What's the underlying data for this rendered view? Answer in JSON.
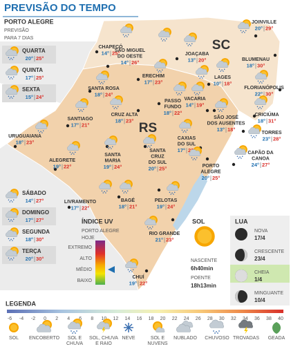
{
  "header": {
    "title": "PREVISÃO DO TEMPO"
  },
  "forecast": {
    "city": "PORTO ALEGRE",
    "subtitle_lines": [
      "PREVISÃO",
      "PARA 7 DIAS"
    ],
    "days": [
      {
        "day": "QUARTA",
        "min": "20°",
        "max": "25°"
      },
      {
        "day": "QUINTA",
        "min": "17°",
        "max": "25°"
      },
      {
        "day": "SEXTA",
        "min": "15°",
        "max": "24°"
      },
      {
        "day": "SÁBADO",
        "min": "14°",
        "max": "27°"
      },
      {
        "day": "DOMINGO",
        "min": "17°",
        "max": "27°"
      },
      {
        "day": "SEGUNDA",
        "min": "18°",
        "max": "30°"
      },
      {
        "day": "TERÇA",
        "min": "20°",
        "max": "30°"
      }
    ]
  },
  "map": {
    "states": [
      "SC",
      "RS"
    ],
    "cities": [
      {
        "name_lines": [
          "JOINVILLE"
        ],
        "min": "20°",
        "max": "29°"
      },
      {
        "name_lines": [
          "CHAPECÓ"
        ],
        "min": "14°",
        "max": "25°"
      },
      {
        "name_lines": [
          "SÃO MIGUEL",
          "DO OESTE"
        ],
        "min": "14°",
        "max": "26°"
      },
      {
        "name_lines": [
          "JOAÇABA"
        ],
        "min": "13°",
        "max": "20°"
      },
      {
        "name_lines": [
          "BLUMENAU"
        ],
        "min": "18°",
        "max": "30°"
      },
      {
        "name_lines": [
          "LAGES"
        ],
        "min": "10°",
        "max": "18°"
      },
      {
        "name_lines": [
          "FLORIANÓPOLIS"
        ],
        "min": "22°",
        "max": "30°"
      },
      {
        "name_lines": [
          "ERECHIM"
        ],
        "min": "17°",
        "max": "23°"
      },
      {
        "name_lines": [
          "SANTA ROSA"
        ],
        "min": "18°",
        "max": "24°"
      },
      {
        "name_lines": [
          "PASSO",
          "FUNDO"
        ],
        "min": "18°",
        "max": "22°"
      },
      {
        "name_lines": [
          "VACARIA"
        ],
        "min": "14°",
        "max": "19°"
      },
      {
        "name_lines": [
          "SANTIAGO"
        ],
        "min": "17°",
        "max": "21°"
      },
      {
        "name_lines": [
          "CRUZ ALTA"
        ],
        "min": "18°",
        "max": "23°"
      },
      {
        "name_lines": [
          "SÃO JOSÉ",
          "DOS AUSENTES"
        ],
        "min": "13°",
        "max": "18°"
      },
      {
        "name_lines": [
          "CRICIÚMA"
        ],
        "min": "18°",
        "max": "31°"
      },
      {
        "name_lines": [
          "TORRES"
        ],
        "min": "23°",
        "max": "28°"
      },
      {
        "name_lines": [
          "URUGUAIANA"
        ],
        "min": "18°",
        "max": "23°"
      },
      {
        "name_lines": [
          "ALEGRETE"
        ],
        "min": "19°",
        "max": "22°"
      },
      {
        "name_lines": [
          "SANTA",
          "MARIA"
        ],
        "min": "19°",
        "max": "24°"
      },
      {
        "name_lines": [
          "SANTA",
          "CRUZ",
          "DO SUL"
        ],
        "min": "20°",
        "max": "25°"
      },
      {
        "name_lines": [
          "CAXIAS",
          "DO SUL"
        ],
        "min": "17°",
        "max": "22°"
      },
      {
        "name_lines": [
          "PORTO",
          "ALEGRE"
        ],
        "min": "20°",
        "max": "25°"
      },
      {
        "name_lines": [
          "CAPÃO DA",
          "CANOA"
        ],
        "min": "24°",
        "max": "27°"
      },
      {
        "name_lines": [
          "LIVRAMENTO"
        ],
        "min": "17°",
        "max": "22°"
      },
      {
        "name_lines": [
          "BAGÉ"
        ],
        "min": "18°",
        "max": "21°"
      },
      {
        "name_lines": [
          "PELOTAS"
        ],
        "min": "19°",
        "max": "24°"
      },
      {
        "name_lines": [
          "RIO GRANDE"
        ],
        "min": "21°",
        "max": "23°"
      },
      {
        "name_lines": [
          "CHUÍ"
        ],
        "min": "19°",
        "max": "22°"
      }
    ]
  },
  "uv_index": {
    "title": "ÍNDICE UV",
    "location_lines": [
      "PORTO ALEGRE",
      "HOJE"
    ],
    "levels": [
      "EXTREMO",
      "ALTO",
      "MÉDIO",
      "BAIXO"
    ]
  },
  "sun": {
    "title": "SOL",
    "sunrise_label": "NASCENTE",
    "sunrise": "6h40min",
    "sunset_label": "POENTE",
    "sunset": "18h13min"
  },
  "moon": {
    "title": "LUA",
    "phases": [
      {
        "name": "NOVA",
        "date": "17/4"
      },
      {
        "name": "CRESCENTE",
        "date": "23/4"
      },
      {
        "name": "CHEIA",
        "date": "1/4"
      },
      {
        "name": "MINGUANTE",
        "date": "10/4"
      }
    ]
  },
  "legend": {
    "title": "LEGENDA",
    "scale": [
      -6,
      -4,
      -2,
      0,
      2,
      4,
      6,
      8,
      10,
      12,
      14,
      16,
      18,
      20,
      22,
      24,
      26,
      28,
      30,
      32,
      34,
      36,
      38,
      40
    ],
    "icons": [
      {
        "label_lines": [
          "SOL"
        ]
      },
      {
        "label_lines": [
          "ENCOBERTO"
        ]
      },
      {
        "label_lines": [
          "SOL E",
          "CHUVA"
        ]
      },
      {
        "label_lines": [
          "SOL, CHUVA",
          "E RAIO"
        ]
      },
      {
        "label_lines": [
          "NEVE"
        ]
      },
      {
        "label_lines": [
          "SOL E",
          "NUVENS"
        ]
      },
      {
        "label_lines": [
          "NUBLADO"
        ]
      },
      {
        "label_lines": [
          "CHUVOSO"
        ]
      },
      {
        "label_lines": [
          "TROVADAS"
        ]
      },
      {
        "label_lines": [
          "GEADA"
        ]
      }
    ]
  }
}
